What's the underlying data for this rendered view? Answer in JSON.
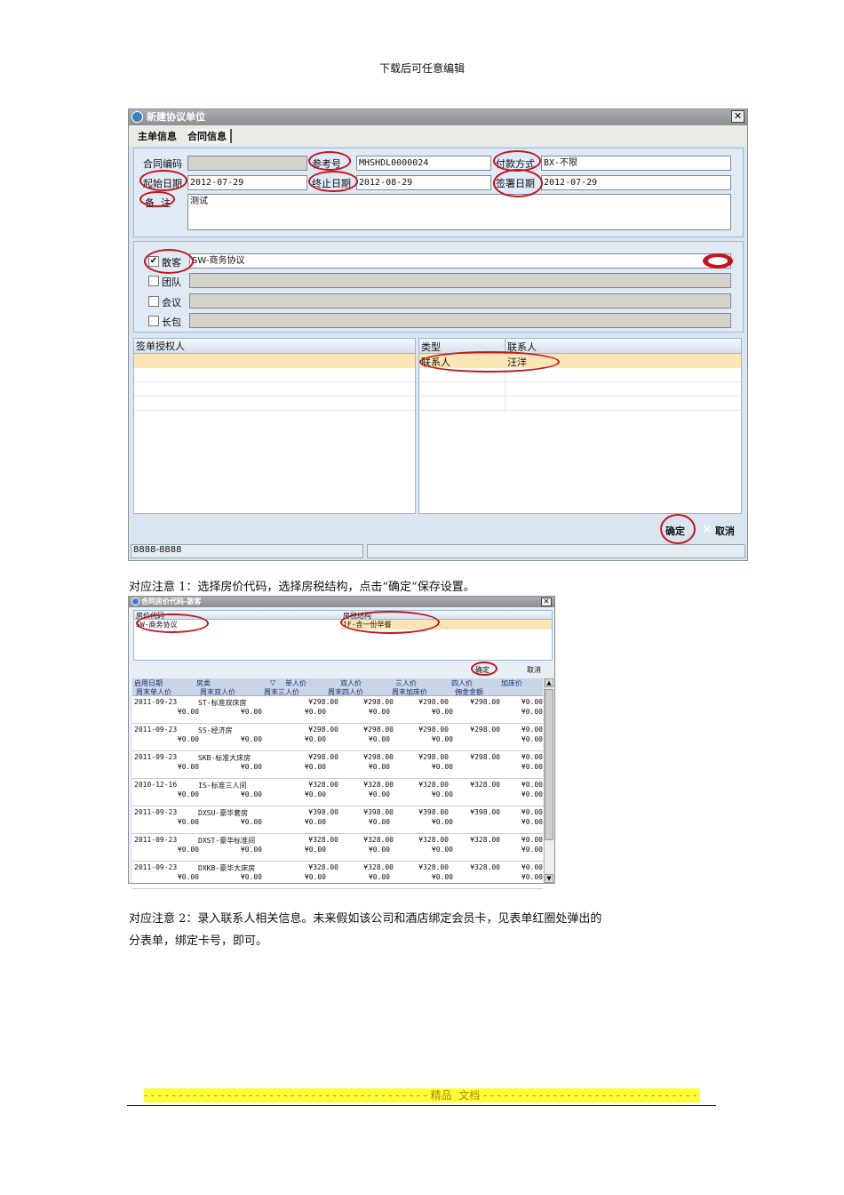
{
  "page_header": "下载后可任意编辑",
  "dialog1": {
    "title": "新建协议单位",
    "tabs": [
      "主单信息",
      "合同信息"
    ],
    "fields": {
      "contract_code_label": "合同编码",
      "contract_code": "",
      "ref_no_label": "参考号",
      "ref_no": "MHSHDL0000024",
      "payment_label": "付款方式",
      "payment": "BX-不限",
      "start_label": "起始日期",
      "start": "2012-07-29",
      "end_label": "终止日期",
      "end": "2012-08-29",
      "sign_label": "签署日期",
      "sign": "2012-07-29",
      "remark_label": "备  注",
      "remark": "测试"
    },
    "categories": [
      {
        "label": "散客",
        "checked": true,
        "value": "SW-商务协议"
      },
      {
        "label": "团队",
        "checked": false,
        "value": ""
      },
      {
        "label": "会议",
        "checked": false,
        "value": ""
      },
      {
        "label": "长包",
        "checked": false,
        "value": ""
      }
    ],
    "auth_grid_header": "签单授权人",
    "contact_grid": {
      "headers": [
        "类型",
        "联系人"
      ],
      "rows": [
        [
          "联系人",
          "汪洋"
        ]
      ]
    },
    "ok": "确定",
    "cancel": "取消",
    "status": "8888-8888"
  },
  "caption1": "对应注意 1：选择房价代码，选择房税结构，点击“确定“保存设置。",
  "dialog2": {
    "title": "合同房价代码-散客",
    "headers": [
      "房价代码",
      "房税结构"
    ],
    "row": [
      "SW-商务协议",
      "1F-含一份早餐"
    ],
    "ok": "确定",
    "cancel": "取消",
    "table_headers_1": [
      "启用日期",
      "房类",
      "单人价",
      "双人价",
      "三人价",
      "四人价",
      "加床价"
    ],
    "table_headers_2": [
      "周末单人价",
      "周末双人价",
      "周末三人价",
      "周末四人价",
      "周末加床价",
      "佣金金额"
    ],
    "rows": [
      {
        "date": "2011-09-23",
        "room": "ST-标准双床房",
        "prices": [
          "¥298.00",
          "¥298.00",
          "¥298.00",
          "¥298.00",
          "¥0.00"
        ],
        "weekend": [
          "¥0.00",
          "¥0.00",
          "¥0.00",
          "¥0.00",
          "¥0.00",
          "¥0.00"
        ]
      },
      {
        "date": "2011-09-23",
        "room": "SS-经济房",
        "prices": [
          "¥298.00",
          "¥298.00",
          "¥298.00",
          "¥298.00",
          "¥0.00"
        ],
        "weekend": [
          "¥0.00",
          "¥0.00",
          "¥0.00",
          "¥0.00",
          "¥0.00",
          "¥0.00"
        ]
      },
      {
        "date": "2011-09-23",
        "room": "SKB-标准大床房",
        "prices": [
          "¥298.00",
          "¥298.00",
          "¥298.00",
          "¥298.00",
          "¥0.00"
        ],
        "weekend": [
          "¥0.00",
          "¥0.00",
          "¥0.00",
          "¥0.00",
          "¥0.00",
          "¥0.00"
        ]
      },
      {
        "date": "2010-12-16",
        "room": "IS-标准三人间",
        "prices": [
          "¥328.00",
          "¥328.00",
          "¥328.00",
          "¥328.00",
          "¥0.00"
        ],
        "weekend": [
          "¥0.00",
          "¥0.00",
          "¥0.00",
          "¥0.00",
          "¥0.00",
          "¥0.00"
        ]
      },
      {
        "date": "2011-09-23",
        "room": "DXSU-豪华套房",
        "prices": [
          "¥398.00",
          "¥398.00",
          "¥398.00",
          "¥398.00",
          "¥0.00"
        ],
        "weekend": [
          "¥0.00",
          "¥0.00",
          "¥0.00",
          "¥0.00",
          "¥0.00",
          "¥0.00"
        ]
      },
      {
        "date": "2011-09-23",
        "room": "DXST-豪华标准间",
        "prices": [
          "¥328.00",
          "¥328.00",
          "¥328.00",
          "¥328.00",
          "¥0.00"
        ],
        "weekend": [
          "¥0.00",
          "¥0.00",
          "¥0.00",
          "¥0.00",
          "¥0.00",
          "¥0.00"
        ]
      },
      {
        "date": "2011-09-23",
        "room": "DXKB-豪华大床房",
        "prices": [
          "¥328.00",
          "¥328.00",
          "¥328.00",
          "¥328.00",
          "¥0.00"
        ],
        "weekend": [
          "¥0.00",
          "¥0.00",
          "¥0.00",
          "¥0.00",
          "¥0.00",
          "¥0.00"
        ]
      }
    ]
  },
  "caption2_line1": "对应注意 2：录入联系人相关信息。未来假如该公司和酒店绑定会员卡，见表单红圈处弹出的",
  "caption2_line2": "分表单，绑定卡号，即可。",
  "footer": {
    "text": "精品  文档",
    "highlight": "#fdfd3a"
  }
}
